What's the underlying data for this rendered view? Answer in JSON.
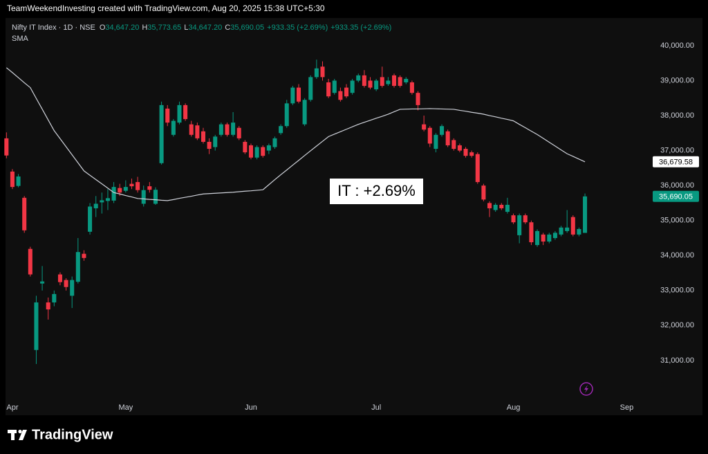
{
  "banner": "TeamWeekendInvesting created with TradingView.com, Aug 20, 2025 15:38 UTC+5:30",
  "brand": "TradingView",
  "chart_data": {
    "type": "candlestick",
    "legend": {
      "symbol": "Nifty IT Index · 1D · NSE",
      "ohlc_fields": [
        {
          "key": "O",
          "value": "34,647.20"
        },
        {
          "key": "H",
          "value": "35,773.65"
        },
        {
          "key": "L",
          "value": "34,647.20"
        },
        {
          "key": "C",
          "value": "35,690.05"
        }
      ],
      "change_labels": [
        "+933.35 (+2.69%)",
        "+933.35 (+2.69%)"
      ]
    },
    "annotation": "IT : +2.69%",
    "up_color": "#089981",
    "down_color": "#f23645",
    "categories": [
      null,
      "Apr",
      null,
      null,
      null,
      null,
      null,
      null,
      null,
      null,
      null,
      null,
      null,
      null,
      null,
      null,
      null,
      null,
      null,
      null,
      "May",
      null,
      null,
      null,
      null,
      null,
      null,
      null,
      null,
      null,
      null,
      null,
      null,
      null,
      null,
      null,
      null,
      null,
      null,
      null,
      null,
      "Jun",
      null,
      null,
      null,
      null,
      null,
      null,
      null,
      null,
      null,
      null,
      null,
      null,
      null,
      null,
      null,
      null,
      null,
      null,
      null,
      null,
      "Jul",
      null,
      null,
      null,
      null,
      null,
      null,
      null,
      null,
      null,
      null,
      null,
      null,
      null,
      null,
      null,
      null,
      null,
      null,
      null,
      null,
      null,
      null,
      "Aug",
      null,
      null,
      null,
      null,
      null,
      null,
      null,
      null,
      null,
      null,
      null,
      null,
      null,
      null,
      null,
      null,
      null,
      null,
      "Sep",
      null,
      null
    ],
    "ohlc": {
      "open": [
        37350,
        36400,
        35990,
        35650,
        34190,
        31300,
        33200,
        32660,
        32660,
        33460,
        33300,
        32850,
        33250,
        34050,
        34680,
        35350,
        35520,
        35560,
        35570,
        35930,
        35850,
        36050,
        36100,
        35480,
        35980,
        35480,
        36640,
        38200,
        37450,
        37800,
        38300,
        37750,
        37720,
        37550,
        37250,
        37100,
        37450,
        37750,
        37450,
        37650,
        37250,
        37150,
        36800,
        37100,
        37000,
        37100,
        37500,
        37700,
        38350,
        38800,
        37750,
        38450,
        39100,
        39400,
        38950,
        38650,
        38700,
        38800,
        38650,
        39000,
        39150,
        39000,
        38750,
        39100,
        38900,
        39150,
        39100,
        38950,
        38950,
        38650,
        37750,
        37650,
        37050,
        37450,
        37550,
        37300,
        37150,
        37050,
        36950,
        36900,
        36000,
        35500,
        35300,
        35450,
        35250,
        35150,
        34580,
        35150,
        34950,
        34300,
        34600,
        34400,
        34500,
        34600,
        34700,
        35100,
        34600,
        34647.2,
        null,
        null,
        null,
        null,
        null,
        null,
        null,
        null,
        null
      ],
      "high": [
        37520,
        36470,
        36330,
        35700,
        34250,
        32850,
        33700,
        32800,
        33000,
        33520,
        33350,
        33400,
        34500,
        34150,
        35500,
        35700,
        35800,
        35900,
        36100,
        36050,
        36150,
        36200,
        36250,
        36000,
        36100,
        35950,
        38400,
        38300,
        37900,
        38400,
        38350,
        37850,
        37800,
        37650,
        37350,
        37450,
        37800,
        37800,
        38100,
        37700,
        37300,
        37200,
        37150,
        37150,
        37200,
        37400,
        37750,
        38450,
        38850,
        38900,
        38500,
        39150,
        39600,
        39550,
        39050,
        39050,
        38800,
        38900,
        39050,
        39200,
        39300,
        39100,
        39050,
        39400,
        39100,
        39200,
        39150,
        39100,
        39000,
        38700,
        38000,
        37700,
        37500,
        37750,
        37600,
        37350,
        37200,
        37100,
        37000,
        36950,
        36050,
        35550,
        35500,
        35500,
        35650,
        35200,
        35200,
        35200,
        35000,
        34750,
        34650,
        34650,
        34700,
        34850,
        35300,
        35150,
        34800,
        35773.65,
        null,
        null,
        null,
        null,
        null,
        null,
        null,
        null,
        null
      ],
      "low": [
        36780,
        35900,
        35950,
        34650,
        33400,
        30900,
        33000,
        32170,
        32550,
        33150,
        33000,
        32500,
        33200,
        33850,
        34600,
        35100,
        35200,
        35300,
        35500,
        35700,
        35800,
        35900,
        35800,
        35400,
        35800,
        35450,
        36600,
        37700,
        37400,
        37750,
        37850,
        37400,
        37300,
        37200,
        36900,
        37000,
        37400,
        37400,
        37400,
        37300,
        36900,
        36750,
        36750,
        36800,
        36900,
        37050,
        37450,
        37650,
        38300,
        38350,
        37700,
        38400,
        39050,
        39000,
        38500,
        38600,
        38400,
        38500,
        38600,
        38950,
        38800,
        38750,
        38700,
        38800,
        38850,
        38800,
        38800,
        38900,
        38600,
        38150,
        37550,
        37100,
        36950,
        37400,
        37100,
        37000,
        36950,
        36800,
        36800,
        36050,
        35550,
        35100,
        35250,
        35300,
        35200,
        34900,
        34350,
        34900,
        34300,
        34250,
        34300,
        34350,
        34450,
        34550,
        34650,
        34550,
        34550,
        34647.2,
        null,
        null,
        null,
        null,
        null,
        null,
        null,
        null,
        null
      ],
      "close": [
        36860,
        35960,
        36260,
        34720,
        33460,
        32660,
        33260,
        32460,
        32900,
        33240,
        33100,
        33300,
        34100,
        33930,
        35400,
        35480,
        35580,
        35640,
        35960,
        35800,
        35960,
        35980,
        35870,
        35870,
        35880,
        35880,
        38300,
        37800,
        37850,
        38300,
        37900,
        37450,
        37350,
        37250,
        37050,
        37400,
        37750,
        37450,
        37800,
        37350,
        36950,
        36800,
        37100,
        36850,
        37150,
        37350,
        37700,
        38350,
        38800,
        38400,
        38450,
        39100,
        39350,
        39100,
        38550,
        39000,
        38450,
        38550,
        39000,
        39150,
        38850,
        38800,
        39000,
        38850,
        39000,
        38850,
        38850,
        39050,
        38650,
        38300,
        37600,
        37200,
        37450,
        37700,
        37150,
        37050,
        37000,
        36850,
        36850,
        36100,
        35600,
        35350,
        35450,
        35350,
        35450,
        34950,
        35150,
        34950,
        34380,
        34700,
        34400,
        34600,
        34650,
        34800,
        34800,
        34600,
        34756.7,
        35690.05,
        null,
        null,
        null,
        null,
        null,
        null,
        null,
        null,
        null
      ]
    },
    "series": [
      {
        "name": "SMA",
        "color": "#d1d4dc",
        "values": [
          39370,
          39230,
          39085,
          38940,
          38800,
          38490,
          38185,
          37875,
          37570,
          37340,
          37110,
          36880,
          36650,
          36420,
          36295,
          36170,
          36050,
          35925,
          35800,
          35760,
          35715,
          35675,
          35630,
          35620,
          35605,
          35595,
          35580,
          35570,
          35600,
          35635,
          35665,
          35695,
          35730,
          35760,
          35770,
          35780,
          35790,
          35800,
          35810,
          35825,
          35840,
          35850,
          35865,
          35880,
          36025,
          36170,
          36310,
          36445,
          36585,
          36720,
          36860,
          36995,
          37130,
          37265,
          37400,
          37470,
          37540,
          37610,
          37680,
          37750,
          37810,
          37865,
          37925,
          37980,
          38040,
          38110,
          38180,
          38185,
          38190,
          38190,
          38195,
          38200,
          38195,
          38190,
          38185,
          38180,
          38150,
          38125,
          38095,
          38070,
          38040,
          38000,
          37965,
          37925,
          37890,
          37850,
          37750,
          37655,
          37555,
          37460,
          37350,
          37240,
          37130,
          37020,
          36910,
          36835,
          36755,
          36679.58,
          null,
          null,
          null,
          null,
          null,
          null,
          null,
          null,
          null
        ]
      }
    ],
    "sma_last_label": "36,679.58",
    "close_last_label": "35,690.05",
    "ylim": [
      29870,
      40790
    ],
    "yticks": [
      {
        "value": 31000,
        "label": "31,000.00"
      },
      {
        "value": 32000,
        "label": "32,000.00"
      },
      {
        "value": 33000,
        "label": "33,000.00"
      },
      {
        "value": 34000,
        "label": "34,000.00"
      },
      {
        "value": 35000,
        "label": "35,000.00"
      },
      {
        "value": 36000,
        "label": "36,000.00"
      },
      {
        "value": 37000,
        "label": "37,000.00"
      },
      {
        "value": 38000,
        "label": "38,000.00"
      },
      {
        "value": 39000,
        "label": "39,000.00"
      },
      {
        "value": 40000,
        "label": "40,000.00"
      }
    ],
    "grid": false
  }
}
